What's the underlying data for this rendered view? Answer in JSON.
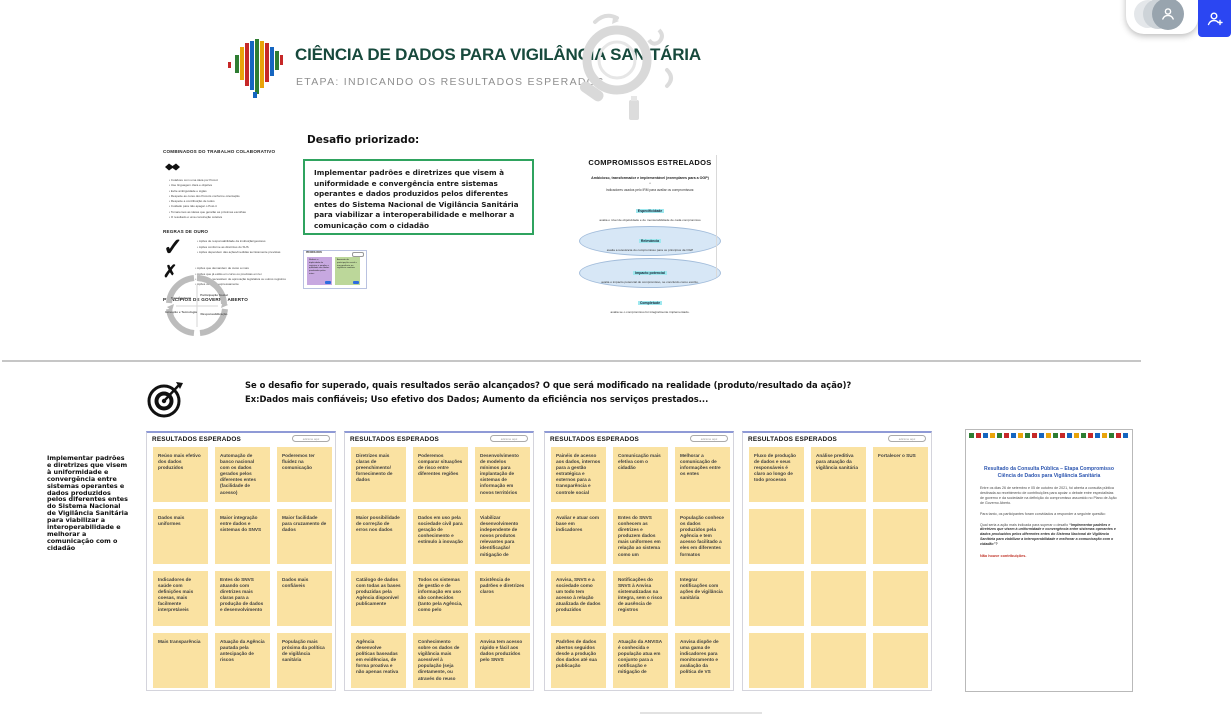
{
  "toolbar": {
    "collaborators_icon": "user-icon",
    "share_icon": "user-add-icon"
  },
  "header": {
    "title": "CIÊNCIA DE DADOS PARA VIGILÂNCIA SANITÁRIA",
    "subtitle": "ETAPA: INDICANDO OS RESULTADOS ESPERADOS"
  },
  "combinados": {
    "title": "COMBINADOS DO TRABALHO COLABORATIVO",
    "items": [
      "Colabore com uma ideia por Post-it",
      "Use linguagem clara e objetiva",
      "Evite ambiguidade e siglas",
      "Respeite as cores dos Post-its conforme orientação",
      "Respeite a contribuição de todos",
      "Cuidado para não apagar o Post-it",
      "Tomaremos as ideias que gerarão as próximas escolhas",
      "O resultado é uma construção coletiva"
    ],
    "regras_title": "REGRAS DE OURO",
    "check_items": [
      "Ações de responsabilidade da instituição/gestores",
      "Ações conforme as diretrizes do SUS",
      "Ações dependem das ações/medidas tecnicamente previstas"
    ],
    "x_items": [
      "Ações que demandem de custo a mais",
      "Ações que já estão em curso ou previstas em lei",
      "Ações que necessitem de aprovação legislativa ou outros registros",
      "Ações vedadas expressamente"
    ],
    "principios_title": "PRINCÍPIOS DE GOVERNO ABERTO",
    "quadrants": [
      "Transparência",
      "Participação Social",
      "Inovação e Tecnologia",
      "Responsabilização"
    ]
  },
  "desafio": {
    "label": "Desafio priorizado:",
    "text": "Implementar padrões e diretrizes que visem à uniformidade e convergência entre sistemas operantes e dados produzidos pelos diferentes entes do Sistema Nacional de Vigilância Sanitária para viabilizar a interoperabilidade e melhorar a comunicação com o cidadão"
  },
  "mini_board": {
    "title": "PRIORIZADOS",
    "note1": "Reduzir a duplicidade de registros e ampliar a qualidade dos dados produzidos pelos entes",
    "note2": "Aumento da participação social e transparência na vigilância sanitária"
  },
  "compromissos": {
    "title": "COMPROMISSOS ESTRELADOS",
    "subtitle": "Ambicioso, transformador e implementável (exemplares para a OGP)",
    "star": "*",
    "intro": "Indicadores usados pelo IRM para avaliar os compromissos:",
    "indicators": [
      {
        "term": "Especificidade",
        "desc": "avalia o nível de objetividade e de mensurabilidade de cada compromisso",
        "ellipse": false
      },
      {
        "term": "Relevância",
        "desc": "avalia a relevância do compromisso para os princípios da OGP",
        "ellipse": true
      },
      {
        "term": "Impacto potencial",
        "desc": "avalia o impacto potencial do compromisso, se concluído como escrito.",
        "ellipse": true
      },
      {
        "term": "Completude",
        "desc": "avalia se o compromisso foi integralmente implementado.",
        "ellipse": false
      }
    ]
  },
  "question": {
    "line1": "Se o desafio for superado, quais resultados serão alcançados? O que será modificado na realidade (produto/resultado da ação)?",
    "line2": "Ex:Dados mais confiáveis; Uso efetivo dos Dados; Aumento da eficiência nos serviços prestados..."
  },
  "challenge_note": {
    "text": "Implementar padrões e diretrizes que visem à uniformidade e convergência entre sistemas operantes e dados produzidos pelos diferentes entes do Sistema Nacional de Vigilância Sanitária para viabilizar a interoperabilidade e melhorar a comunicação com o cidadão"
  },
  "frames_pill": "adicione aqui",
  "frames": [
    {
      "title": "RESULTADOS ESPERADOS",
      "notes": [
        "Reúso mais efetivo dos dados produzidos",
        "Automação de banco nacional com os dados gerados pelos diferentes entes (facilidade de acesso)",
        "Poderemos ter fluidez na comunicação",
        "Dados mais uniformes",
        "Maior integração entre dados e sistemas do SNVS",
        "Maior facilidade para cruzamento de dados",
        "Indicadores de saúde com definições mais coesas, mais facilmente interpretáveis",
        "Entes do SNVS atuando com diretrizes mais claras para a produção de dados e desenvolvimento",
        "Dados mais confiáveis",
        "Mais transparência",
        "Atuação da Agência pautada pela antecipação de riscos",
        "População mais próxima da política de vigilância sanitária"
      ]
    },
    {
      "title": "RESULTADOS ESPERADOS",
      "notes": [
        "Diretrizes mais claras de preenchimento/ fornecimento de dados",
        "Poderemos comparar situações de risco entre diferentes regiões",
        "Desenvolvimento de modelos mínimos para implantação de sistemas de informação em novos territórios",
        "Maior possibilidade de correção de erros nos dados",
        "Dados em uso pela sociedade civil para geração de conhecimento e estímulo à inovação",
        "Viabilizar desenvolvimento independente de novos produtos relevantes para identificação/ mitigação de",
        "Catálogo de dados com todas as bases produzidas pela Agência disponível publicamente",
        "Todos os sistemas de gestão e de informação em uso são conhecidos (tanto pela Agência, como pelo",
        "Existência de padrões e diretrizes claros",
        "Agência desenvolve políticas baseadas em evidências, de forma proativa e não apenas reativa",
        "Conhecimento sobre os dados de vigilância mais acessível à população (seja diretamente, ou através do reuso",
        "Anvisa tem acesso rápido e fácil aos dados produzidos pelo SNVS"
      ]
    },
    {
      "title": "RESULTADOS ESPERADOS",
      "notes": [
        "Painéis de acesso aos dados, internos para a gestão estratégica e externos para a transparência e controle social",
        "Comunicação mais efetiva com o cidadão",
        "Melhorar a comunicação de informações entre os entes",
        "Avaliar e atuar com base em indicadores",
        "Entes do SNVS conhecem as diretrizes e produzem dados mais uniformes em relação ao sistema como um",
        "População conhece os dados produzidos pela Agência e tem acesso facilitado a eles em diferentes formatos",
        "Anvisa, SNVS e a sociedade como um todo tem acesso à relação atualizada de dados produzidos",
        "Notificações do SNVS à Anvisa sistematizadas na íntegra, sem o risco de ausência de registros",
        "Integrar notificações com ações de vigilância sanitária",
        "Padrões de dados abertos seguidos desde a produção dos dados até sua publicação",
        "Atuação da ANVISA é conhecida e população atua em conjunto para a notificação e mitigação de",
        "Anvisa dispõe de uma gama de indicadores para monitoramento e avaliação da política de VS"
      ]
    },
    {
      "title": "RESULTADOS ESPERADOS",
      "notes": [
        "Fluxo de produção de dados e seus responsáveis é claro ao longo de todo processo",
        "Análise preditiva para atuação da vigilância sanitária",
        "Fortalecer o SUS",
        "",
        "",
        "",
        "",
        "",
        "",
        "",
        "",
        ""
      ]
    }
  ],
  "consulta": {
    "title_line1": "Resultado da Consulta Pública – Etapa Compromisso",
    "title_line2": "Ciência de Dados para Vigilância Sanitária",
    "p1": "Entre os dias 26 de setembro e 05 de outubro de 2021, foi aberta a consulta pública destinada ao recebimento de contribuições para apoiar o debate entre especialistas de governo e da sociedade na definição do compromisso assumido no Plano de Ação de Governo Aberto.",
    "p2": "Para tanto, os participantes foram convidados a responder a seguinte questão:",
    "p3_prefix": "Qual seria a ação mais indicada para superar o desafio ",
    "p3_quote": "“Implementar padrões e diretrizes que visem à uniformidade e convergência entre sistemas operantes e dados produzidos pelos diferentes entes do Sistema Nacional de Vigilância Sanitária para viabilizar a interoperabilidade e melhorar a comunicação com o cidadão”?",
    "no_contrib": "Não houve contribuições."
  }
}
